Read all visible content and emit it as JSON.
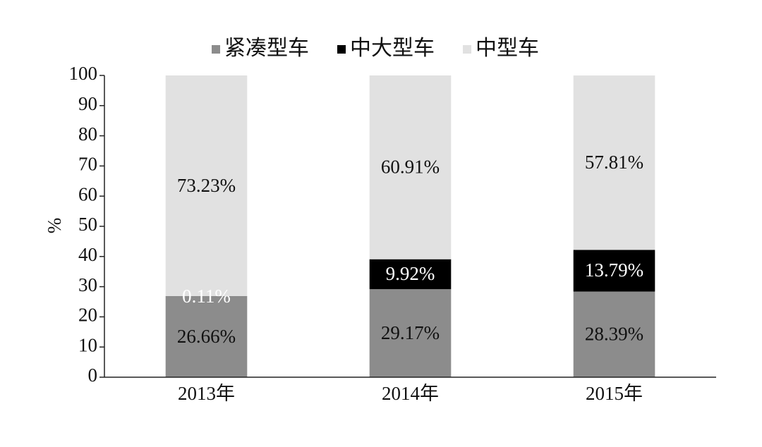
{
  "chart_data": {
    "type": "stacked_bar",
    "y_label": "%",
    "categories": [
      "2013年",
      "2014年",
      "2015年"
    ],
    "series": [
      {
        "name": "紧凑型车",
        "color": "#8c8c8c",
        "values": [
          26.66,
          29.17,
          28.39
        ],
        "value_labels": [
          "26.66%",
          "29.17%",
          "28.39%"
        ]
      },
      {
        "name": "中大型车",
        "color": "#000000",
        "values": [
          0.11,
          9.92,
          13.79
        ],
        "value_labels": [
          "0.11%",
          "9.92%",
          "13.79%"
        ]
      },
      {
        "name": "中型车",
        "color": "#e1e1e1",
        "values": [
          73.23,
          60.91,
          57.81
        ],
        "value_labels": [
          "73.23%",
          "60.91%",
          "57.81%"
        ]
      }
    ],
    "ylim": [
      0,
      100
    ],
    "yticks": [
      0,
      10,
      20,
      30,
      40,
      50,
      60,
      70,
      80,
      90,
      100
    ],
    "legend": "top"
  }
}
